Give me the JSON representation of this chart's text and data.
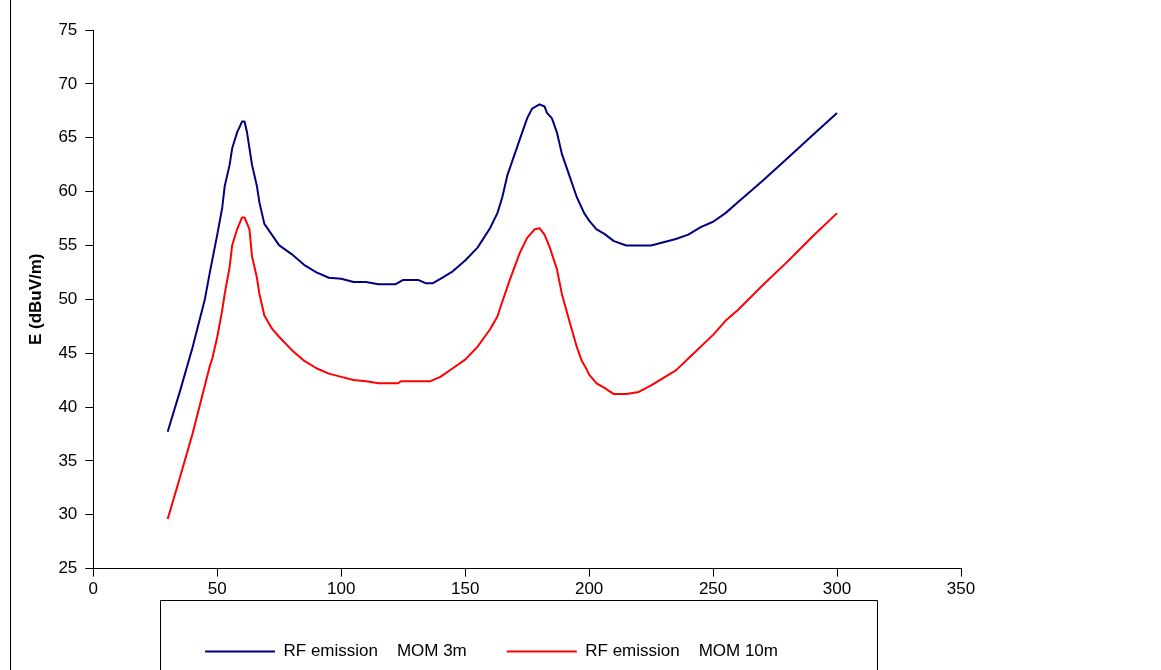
{
  "chart_data": {
    "type": "line",
    "ylabel": "E (dBuV/m)",
    "xlim": [
      0,
      350
    ],
    "xticks": [
      0,
      50,
      100,
      150,
      200,
      250,
      300,
      350
    ],
    "ylim": [
      25,
      75
    ],
    "yticks": [
      25,
      30,
      35,
      40,
      45,
      50,
      55,
      60,
      65,
      70,
      75
    ],
    "grid": false,
    "legend": "bottom",
    "marker": "none",
    "line_style": "solid",
    "series": [
      {
        "name": "RF emission    MOM 3m",
        "color": "#000080",
        "x": [
          30,
          35,
          40,
          45,
          47,
          50,
          52,
          53,
          55,
          56,
          58,
          60,
          61,
          62,
          64,
          66,
          67,
          69,
          72,
          75,
          80,
          85,
          90,
          95,
          100,
          105,
          110,
          115,
          120,
          122,
          125,
          128,
          131,
          134,
          137,
          140,
          145,
          150,
          155,
          160,
          163,
          165,
          167,
          170,
          173,
          175,
          177,
          180,
          182,
          183,
          185,
          187,
          189,
          192,
          195,
          198,
          200,
          203,
          206,
          210,
          215,
          220,
          225,
          230,
          235,
          240,
          245,
          250,
          255,
          260,
          270,
          280,
          290,
          300
        ],
        "values": [
          37.7,
          41.5,
          45.5,
          50,
          52.5,
          56,
          58.5,
          60.5,
          62.5,
          64,
          65.5,
          66.5,
          66.5,
          65.5,
          62.5,
          60.5,
          59,
          57,
          56,
          55,
          54.2,
          53.2,
          52.5,
          52,
          51.9,
          51.6,
          51.6,
          51.4,
          51.4,
          51.4,
          51.8,
          51.8,
          51.8,
          51.5,
          51.5,
          51.9,
          52.6,
          53.6,
          54.8,
          56.6,
          58,
          59.5,
          61.5,
          63.5,
          65.5,
          66.8,
          67.7,
          68.1,
          67.9,
          67.3,
          66.8,
          65.5,
          63.5,
          61.5,
          59.5,
          58,
          57.3,
          56.5,
          56.1,
          55.4,
          55,
          55,
          55,
          55.3,
          55.6,
          56,
          56.7,
          57.2,
          58,
          59,
          61,
          63.1,
          65.2,
          67.3
        ]
      },
      {
        "name": "RF emission    MOM 10m",
        "color": "#ff0000",
        "x": [
          30,
          35,
          40,
          45,
          47,
          48,
          50,
          52,
          53,
          55,
          56,
          58,
          60,
          61,
          63,
          64,
          66,
          67,
          69,
          72,
          75,
          80,
          85,
          90,
          95,
          100,
          105,
          110,
          115,
          120,
          123,
          124,
          130,
          136,
          140,
          145,
          150,
          155,
          160,
          163,
          165,
          168,
          172,
          175,
          178,
          180,
          182,
          184,
          187,
          189,
          192,
          195,
          197,
          199,
          200,
          203,
          206,
          210,
          215,
          220,
          225,
          230,
          235,
          240,
          250,
          255,
          260,
          270,
          280,
          290,
          300
        ],
        "values": [
          29.6,
          33.5,
          37.5,
          42,
          43.8,
          44.5,
          46.5,
          49,
          50.5,
          53,
          55,
          56.5,
          57.6,
          57.6,
          56.5,
          54,
          52,
          50.5,
          48.5,
          47.3,
          46.5,
          45.3,
          44.3,
          43.6,
          43.1,
          42.8,
          42.5,
          42.4,
          42.2,
          42.2,
          42.2,
          42.4,
          42.4,
          42.4,
          42.8,
          43.6,
          44.4,
          45.6,
          47.2,
          48.4,
          49.8,
          51.8,
          54.3,
          55.7,
          56.5,
          56.6,
          56,
          54.9,
          52.8,
          50.5,
          48,
          45.6,
          44.3,
          43.5,
          43,
          42.2,
          41.8,
          41.2,
          41.2,
          41.4,
          42,
          42.7,
          43.4,
          44.5,
          46.7,
          48,
          49,
          51.3,
          53.5,
          55.8,
          58
        ]
      }
    ]
  }
}
